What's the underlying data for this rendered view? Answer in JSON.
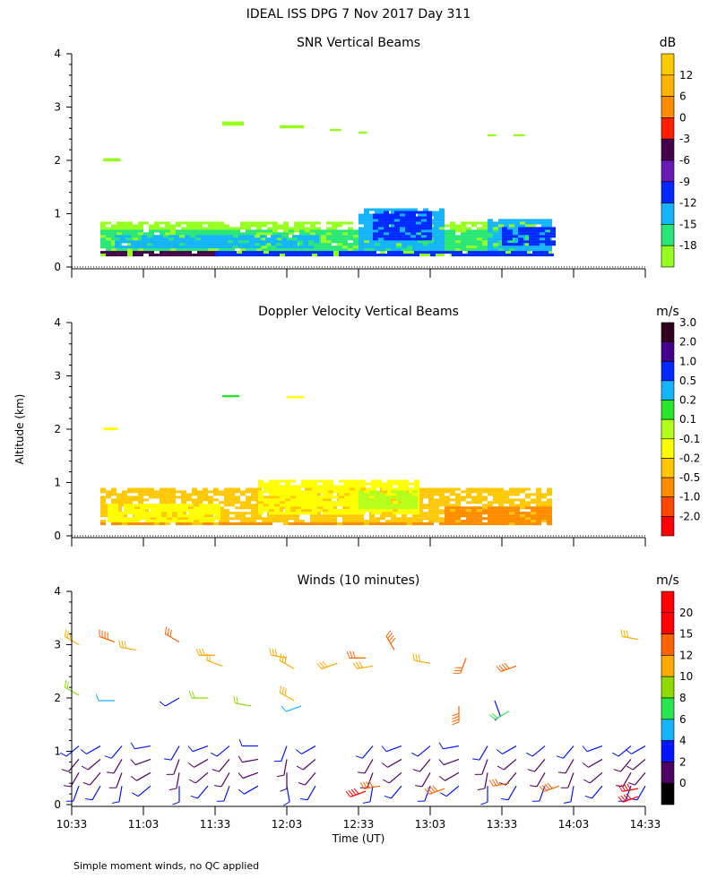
{
  "header": {
    "title": "IDEAL ISS DPG   7 Nov 2017 Day 311"
  },
  "footer": {
    "note": "Simple moment winds, no QC applied"
  },
  "chart_data": [
    {
      "type": "heatmap",
      "title": "SNR Vertical Beams",
      "ylabel": "",
      "xlabel": "",
      "ylim": [
        0,
        4
      ],
      "yticks": [
        "0",
        "1",
        "2",
        "3",
        "4"
      ],
      "colorbar_unit": "dB",
      "colorbar_labels": [
        "12",
        "6",
        "0",
        "-3",
        "-6",
        "-9",
        "-12",
        "-15",
        "-18"
      ],
      "colorbar_colors": [
        "#ffb400",
        "#ff8c00",
        "#ff1e00",
        "#46004b",
        "#6a19b4",
        "#0028ff",
        "#14b4ff",
        "#28e678",
        "#96ff1e"
      ],
      "colorbar_top_color": "#ffcc00",
      "layers": [
        {
          "t0": 0.2,
          "t1": 3.35,
          "z0": 0.2,
          "z1": 0.85,
          "c": 8
        },
        {
          "t0": 0.2,
          "t1": 3.35,
          "z0": 0.3,
          "z1": 0.7,
          "c": 7
        },
        {
          "t0": 0.3,
          "t1": 1.7,
          "z0": 0.35,
          "z1": 0.55,
          "c": 6
        },
        {
          "t0": 2.0,
          "t1": 2.6,
          "z0": 0.3,
          "z1": 1.1,
          "c": 6
        },
        {
          "t0": 2.1,
          "t1": 2.5,
          "z0": 0.5,
          "z1": 1.05,
          "c": 5
        },
        {
          "t0": 2.9,
          "t1": 3.35,
          "z0": 0.3,
          "z1": 0.9,
          "c": 6
        },
        {
          "t0": 3.0,
          "t1": 3.35,
          "z0": 0.4,
          "z1": 0.75,
          "c": 5
        },
        {
          "t0": 0.2,
          "t1": 1.0,
          "z0": 0.2,
          "z1": 0.28,
          "c": 3
        },
        {
          "t0": 1.0,
          "t1": 3.35,
          "z0": 0.2,
          "z1": 0.26,
          "c": 5
        }
      ],
      "specks": [
        {
          "t": 0.22,
          "z": 1.98,
          "w": 0.12,
          "h": 0.06,
          "c": 8
        },
        {
          "t": 1.05,
          "z": 2.65,
          "w": 0.15,
          "h": 0.08,
          "c": 8
        },
        {
          "t": 1.45,
          "z": 2.6,
          "w": 0.17,
          "h": 0.06,
          "c": 8
        },
        {
          "t": 1.8,
          "z": 2.55,
          "w": 0.08,
          "h": 0.04,
          "c": 8
        },
        {
          "t": 2.0,
          "z": 2.5,
          "w": 0.06,
          "h": 0.04,
          "c": 8
        },
        {
          "t": 2.9,
          "z": 2.45,
          "w": 0.06,
          "h": 0.04,
          "c": 8
        },
        {
          "t": 3.08,
          "z": 2.45,
          "w": 0.08,
          "h": 0.04,
          "c": 8
        }
      ]
    },
    {
      "type": "heatmap",
      "title": "Doppler Velocity Vertical Beams",
      "ylabel": "Altitude (km)",
      "xlabel": "",
      "ylim": [
        0,
        4
      ],
      "yticks": [
        "0",
        "1",
        "2",
        "3",
        "4"
      ],
      "colorbar_unit": "m/s",
      "colorbar_labels": [
        "3.0",
        "2.0",
        "1.0",
        "0.5",
        "0.2",
        "0.1",
        "-0.1",
        "-0.2",
        "-0.5",
        "-1.0",
        "-2.0"
      ],
      "colorbar_colors": [
        "#32001e",
        "#46008c",
        "#0028ff",
        "#14b4ff",
        "#28e628",
        "#b4ff1e",
        "#ffff00",
        "#ffc800",
        "#ff8c00",
        "#ff4600",
        "#ff0000"
      ],
      "layers": [
        {
          "t0": 0.2,
          "t1": 3.35,
          "z0": 0.2,
          "z1": 0.9,
          "c": 7
        },
        {
          "t0": 0.25,
          "t1": 1.0,
          "z0": 0.25,
          "z1": 0.6,
          "c": 6
        },
        {
          "t0": 1.3,
          "t1": 2.4,
          "z0": 0.4,
          "z1": 1.05,
          "c": 6
        },
        {
          "t0": 2.0,
          "t1": 2.4,
          "z0": 0.5,
          "z1": 0.85,
          "c": 5
        },
        {
          "t0": 2.6,
          "t1": 3.35,
          "z0": 0.25,
          "z1": 0.5,
          "c": 8
        },
        {
          "t0": 0.2,
          "t1": 3.35,
          "z0": 0.2,
          "z1": 0.24,
          "c": 8
        }
      ],
      "specks": [
        {
          "t": 0.22,
          "z": 1.98,
          "w": 0.1,
          "h": 0.05,
          "c": 6
        },
        {
          "t": 1.05,
          "z": 2.6,
          "w": 0.12,
          "h": 0.04,
          "c": 4
        },
        {
          "t": 1.5,
          "z": 2.58,
          "w": 0.12,
          "h": 0.04,
          "c": 6
        }
      ]
    },
    {
      "type": "scatter",
      "title": "Winds (10 minutes)",
      "xlabel": "Time (UT)",
      "ylabel": "",
      "ylim": [
        0,
        4
      ],
      "yticks": [
        "0",
        "1",
        "2",
        "3",
        "4"
      ],
      "xticks": [
        "10:33",
        "11:03",
        "11:33",
        "12:03",
        "12:33",
        "13:03",
        "13:33",
        "14:03",
        "14:33"
      ],
      "xlim_hours": [
        0,
        4
      ],
      "colorbar_unit": "m/s",
      "colorbar_labels": [
        "20",
        "15",
        "12",
        "10",
        "8",
        "6",
        "4",
        "2",
        "0"
      ],
      "colorbar_colors": [
        "#ff0000",
        "#ff6400",
        "#ffaa00",
        "#8cdc00",
        "#28e650",
        "#14b4ff",
        "#0014ff",
        "#500064",
        "#000000"
      ],
      "colorbar_top_color": "#ff0000",
      "barbs_high": [
        {
          "t": 0.05,
          "z": 3.0,
          "dir": 300,
          "spd": 14
        },
        {
          "t": 0.3,
          "z": 3.05,
          "dir": 290,
          "spd": 18
        },
        {
          "t": 0.45,
          "z": 2.9,
          "dir": 280,
          "spd": 14
        },
        {
          "t": 0.75,
          "z": 3.05,
          "dir": 300,
          "spd": 15
        },
        {
          "t": 1.0,
          "z": 2.8,
          "dir": 270,
          "spd": 13
        },
        {
          "t": 1.05,
          "z": 2.6,
          "dir": 290,
          "spd": 12
        },
        {
          "t": 1.5,
          "z": 2.75,
          "dir": 280,
          "spd": 14
        },
        {
          "t": 1.55,
          "z": 2.55,
          "dir": 300,
          "spd": 13
        },
        {
          "t": 1.85,
          "z": 2.65,
          "dir": 250,
          "spd": 14
        },
        {
          "t": 2.05,
          "z": 2.75,
          "dir": 270,
          "spd": 15
        },
        {
          "t": 2.1,
          "z": 2.6,
          "dir": 260,
          "spd": 14
        },
        {
          "t": 2.25,
          "z": 2.9,
          "dir": 330,
          "spd": 18
        },
        {
          "t": 2.5,
          "z": 2.65,
          "dir": 280,
          "spd": 14
        },
        {
          "t": 2.75,
          "z": 2.75,
          "dir": 200,
          "spd": 15
        },
        {
          "t": 3.1,
          "z": 2.6,
          "dir": 250,
          "spd": 18
        },
        {
          "t": 3.95,
          "z": 3.1,
          "dir": 280,
          "spd": 14
        }
      ],
      "barbs_mid": [
        {
          "t": 0.05,
          "z": 2.05,
          "dir": 300,
          "spd": 11
        },
        {
          "t": 0.3,
          "z": 1.95,
          "dir": 270,
          "spd": 7
        },
        {
          "t": 0.75,
          "z": 2.0,
          "dir": 240,
          "spd": 4
        },
        {
          "t": 0.95,
          "z": 2.0,
          "dir": 270,
          "spd": 10
        },
        {
          "t": 1.25,
          "z": 1.85,
          "dir": 280,
          "spd": 10
        },
        {
          "t": 1.55,
          "z": 1.95,
          "dir": 300,
          "spd": 13
        },
        {
          "t": 1.6,
          "z": 1.85,
          "dir": 250,
          "spd": 6
        },
        {
          "t": 2.7,
          "z": 1.85,
          "dir": 180,
          "spd": 18
        },
        {
          "t": 2.95,
          "z": 1.95,
          "dir": 160,
          "spd": 4
        },
        {
          "t": 3.05,
          "z": 1.75,
          "dir": 240,
          "spd": 8
        }
      ],
      "barbs_low_times": [
        0.05,
        0.2,
        0.35,
        0.55,
        0.75,
        0.95,
        1.1,
        1.3,
        1.5,
        1.7,
        2.1,
        2.3,
        2.5,
        2.7,
        2.9,
        3.1,
        3.3,
        3.5,
        3.7,
        3.9,
        4.0
      ],
      "barbs_low_levels": [
        0.35,
        0.6,
        0.85,
        1.1
      ],
      "barbs_low_dirs": [
        200,
        210,
        190,
        230,
        180,
        220,
        200,
        240,
        170,
        210,
        190,
        220,
        200,
        230,
        180,
        210,
        200,
        190,
        220,
        200,
        210
      ],
      "barbs_low_speeds": [
        5,
        3,
        2,
        4
      ],
      "barbs_red": [
        {
          "t": 2.05,
          "z": 0.25,
          "dir": 250,
          "spd": 20
        },
        {
          "t": 2.15,
          "z": 0.35,
          "dir": 260,
          "spd": 18
        },
        {
          "t": 2.6,
          "z": 0.3,
          "dir": 250,
          "spd": 19
        },
        {
          "t": 3.05,
          "z": 0.4,
          "dir": 260,
          "spd": 17
        },
        {
          "t": 3.4,
          "z": 0.35,
          "dir": 250,
          "spd": 18
        },
        {
          "t": 3.95,
          "z": 0.3,
          "dir": 260,
          "spd": 20
        },
        {
          "t": 3.95,
          "z": 0.15,
          "dir": 250,
          "spd": 21
        }
      ]
    }
  ]
}
